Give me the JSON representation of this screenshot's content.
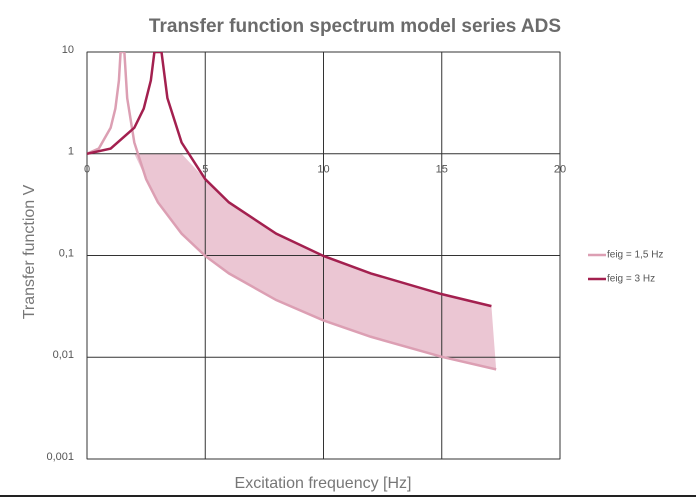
{
  "chart_data": {
    "type": "line",
    "title": "Transfer function spectrum model series ADS",
    "x_label": "Excitation frequency [Hz]",
    "y_label": "Transfer function V",
    "xlim": [
      0,
      20
    ],
    "xticks": [
      0,
      5,
      10,
      15,
      20
    ],
    "ylim": [
      0.001,
      10
    ],
    "yticks": [
      {
        "value": 0.001,
        "label": "0,001"
      },
      {
        "value": 0.01,
        "label": "0,01"
      },
      {
        "value": 0.1,
        "label": "0,1"
      },
      1,
      10
    ],
    "log_y": true,
    "grid": true,
    "legend": "right",
    "fill_between": true,
    "fill_color": "#e3aec0",
    "series": [
      {
        "name": "feig = 1,5 Hz",
        "color": "#dc9fb3",
        "x": [
          0,
          0.5,
          1,
          1.2,
          1.35,
          1.42,
          1.58,
          1.7,
          2,
          2.5,
          3,
          4,
          5,
          6,
          8,
          10,
          12,
          15,
          17.3
        ],
        "values": [
          1,
          1.125,
          1.8,
          2.78,
          5.26,
          10,
          10,
          3.52,
          1.29,
          0.5625,
          0.333,
          0.164,
          0.099,
          0.0667,
          0.0365,
          0.023,
          0.0159,
          0.0101,
          0.0076
        ]
      },
      {
        "name": "feig = 3 Hz",
        "color": "#a3204f",
        "x": [
          0,
          1,
          2,
          2.4,
          2.7,
          2.85,
          3.15,
          3.4,
          4,
          5,
          6,
          8,
          10,
          12,
          15,
          17.1
        ],
        "values": [
          1,
          1.125,
          1.8,
          2.78,
          5.26,
          10,
          10,
          3.52,
          1.29,
          0.5625,
          0.333,
          0.164,
          0.099,
          0.0667,
          0.0417,
          0.0318
        ]
      }
    ]
  }
}
